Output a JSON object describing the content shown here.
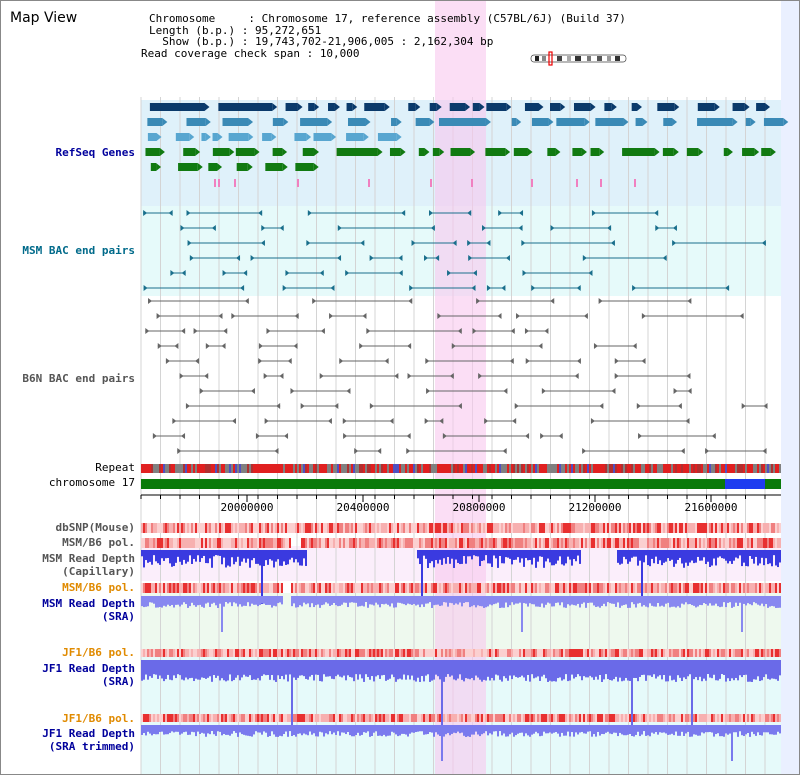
{
  "app": {
    "title": "Map View"
  },
  "header": {
    "chromosome_key": "Chromosome     : ",
    "chromosome_value": "Chromosome 17, reference assembly (C57BL/6J) (Build 37)",
    "length_key": "Length (b.p.) : ",
    "length_value": "95,272,651",
    "show_key": "  Show (b.p.) : ",
    "show_value": "19,743,702-21,906,005 : 2,162,304 bp",
    "span_key": "Read coverage check span : ",
    "span_value": "10,000"
  },
  "tracks": {
    "refseq": {
      "label": "RefSeq Genes",
      "color": "#00009c"
    },
    "msm_bac": {
      "label": "MSM BAC end pairs",
      "color": "#006a8a"
    },
    "b6n_bac": {
      "label": "B6N BAC end pairs",
      "color": "#555555"
    },
    "repeat": {
      "label": "Repeat",
      "color": "#000000"
    },
    "chromosome": {
      "label": "chromosome 17",
      "color": "#000000"
    },
    "dbsnp": {
      "label": "dbSNP(Mouse)",
      "color": "#555555"
    },
    "msm_b6_pol_1": {
      "label": "MSM/B6 pol.",
      "color": "#555555"
    },
    "msm_depth_cap_1": {
      "label": "MSM Read Depth",
      "color": "#555555"
    },
    "msm_depth_cap_2": {
      "label": "(Capillary)",
      "color": "#555555"
    },
    "msm_b6_pol_2": {
      "label": "MSM/B6 pol.",
      "color": "#e08a00"
    },
    "msm_depth_sra_1": {
      "label": "MSM Read Depth",
      "color": "#00009c"
    },
    "msm_depth_sra_2": {
      "label": "(SRA)",
      "color": "#00009c"
    },
    "jf1_b6_pol_1": {
      "label": "JF1/B6 pol.",
      "color": "#e08a00"
    },
    "jf1_depth_sra_1": {
      "label": "JF1 Read Depth",
      "color": "#00009c"
    },
    "jf1_depth_sra_2": {
      "label": "(SRA)",
      "color": "#00009c"
    },
    "jf1_b6_pol_2": {
      "label": "JF1/B6 pol.",
      "color": "#e08a00"
    },
    "jf1_depth_trim_1": {
      "label": "JF1 Read Depth",
      "color": "#00009c"
    },
    "jf1_depth_trim_2": {
      "label": "(SRA trimmed)",
      "color": "#00009c"
    }
  },
  "ruler": {
    "ticks": [
      "20000000",
      "20400000",
      "20800000",
      "21200000",
      "21600000"
    ]
  }
}
